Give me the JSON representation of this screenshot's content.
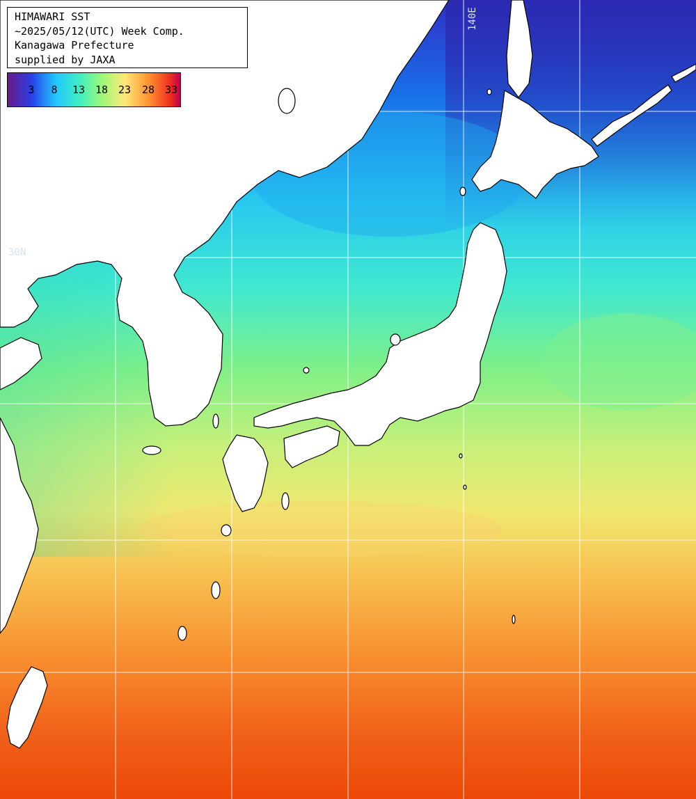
{
  "header": {
    "line1": "HIMAWARI SST",
    "line2": "~2025/05/12(UTC) Week Comp.",
    "line3": "Kanagawa Prefecture",
    "line4": "supplied by JAXA"
  },
  "legend": {
    "ticks": [
      "3",
      "8",
      "13",
      "18",
      "23",
      "28",
      "33"
    ],
    "colors": [
      "#5a2a90",
      "#2060ff",
      "#20e8ff",
      "#80ff80",
      "#ffe080",
      "#ff8030",
      "#e00030"
    ]
  },
  "grid_labels": {
    "lon": "140E",
    "lat": "30N"
  },
  "colors": {
    "land": "#ffffff",
    "coast": "#000000",
    "grid": "#ffffff"
  }
}
